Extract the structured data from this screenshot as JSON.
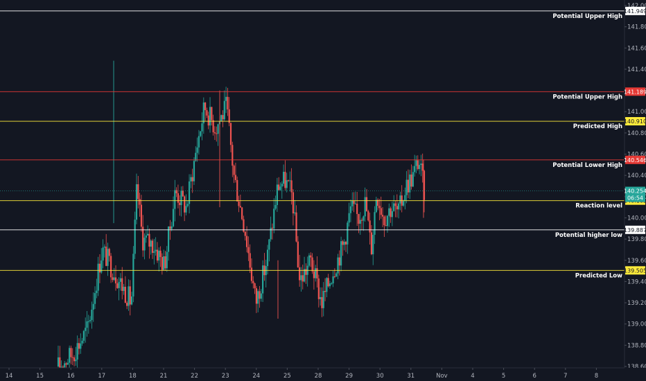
{
  "chart_data": {
    "type": "candlestick",
    "title": "",
    "xlabel": "",
    "ylabel": "",
    "ylim": [
      138.6,
      142.0
    ],
    "y_ticks": [
      "142.000",
      "141.800",
      "141.600",
      "141.400",
      "141.200",
      "141.000",
      "140.800",
      "140.600",
      "140.400",
      "140.200",
      "140.000",
      "139.800",
      "139.600",
      "139.400",
      "139.200",
      "139.000",
      "138.800",
      "138.600"
    ],
    "x_ticks": [
      "14",
      "15",
      "16",
      "17",
      "18",
      "21",
      "22",
      "23",
      "24",
      "25",
      "28",
      "29",
      "30",
      "31",
      "Nov",
      "4",
      "5",
      "6",
      "7",
      "8"
    ],
    "levels": [
      {
        "value": 141.949,
        "price_label": "141.949",
        "label": "Potential Upper High",
        "color": "#ffffff",
        "badge_bg": "#ffffff",
        "badge_fg": "#131722"
      },
      {
        "value": 141.189,
        "price_label": "141.189",
        "label": "Potential Upper High",
        "color": "#e53935",
        "badge_bg": "#e53935",
        "badge_fg": "#ffffff"
      },
      {
        "value": 140.91,
        "price_label": "140.910",
        "label": "Predicted High",
        "color": "#ffeb3b",
        "badge_bg": "#ffeb3b",
        "badge_fg": "#131722"
      },
      {
        "value": 140.546,
        "price_label": "140.546",
        "label": "Potential Lower High",
        "color": "#e53935",
        "badge_bg": "#e53935",
        "badge_fg": "#ffffff"
      },
      {
        "value": 140.162,
        "price_label": "140.162",
        "label": "Reaction level",
        "color": "#ffeb3b",
        "badge_bg": "#ffeb3b",
        "badge_fg": "#131722"
      },
      {
        "value": 139.887,
        "price_label": "139.887",
        "label": "Potential higher low",
        "color": "#ffffff",
        "badge_bg": "#ffffff",
        "badge_fg": "#131722"
      },
      {
        "value": 139.505,
        "price_label": "139.505",
        "label": "Predicted Low",
        "color": "#ffeb3b",
        "badge_bg": "#ffeb3b",
        "badge_fg": "#131722"
      }
    ],
    "last_price": {
      "value": 140.254,
      "label": "140.254",
      "countdown": "06:54",
      "color": "#26a69a"
    },
    "up_color": "#26a69a",
    "down_color": "#ef5350",
    "background": "#131722",
    "grid": false,
    "waypoints": [
      {
        "t": 0.0,
        "p": 138.6
      },
      {
        "t": 0.04,
        "p": 138.72
      },
      {
        "t": 0.08,
        "p": 138.95
      },
      {
        "t": 0.12,
        "p": 139.7
      },
      {
        "t": 0.16,
        "p": 139.45
      },
      {
        "t": 0.2,
        "p": 139.2
      },
      {
        "t": 0.215,
        "p": 140.3
      },
      {
        "t": 0.23,
        "p": 139.8
      },
      {
        "t": 0.26,
        "p": 139.75
      },
      {
        "t": 0.29,
        "p": 139.55
      },
      {
        "t": 0.32,
        "p": 140.25
      },
      {
        "t": 0.35,
        "p": 140.1
      },
      {
        "t": 0.38,
        "p": 140.7
      },
      {
        "t": 0.4,
        "p": 141.05
      },
      {
        "t": 0.43,
        "p": 140.85
      },
      {
        "t": 0.46,
        "p": 141.05
      },
      {
        "t": 0.48,
        "p": 140.4
      },
      {
        "t": 0.51,
        "p": 139.9
      },
      {
        "t": 0.54,
        "p": 139.2
      },
      {
        "t": 0.57,
        "p": 139.6
      },
      {
        "t": 0.6,
        "p": 140.3
      },
      {
        "t": 0.62,
        "p": 140.35
      },
      {
        "t": 0.64,
        "p": 140.2
      },
      {
        "t": 0.66,
        "p": 139.4
      },
      {
        "t": 0.69,
        "p": 139.6
      },
      {
        "t": 0.72,
        "p": 139.2
      },
      {
        "t": 0.75,
        "p": 139.5
      },
      {
        "t": 0.78,
        "p": 139.75
      },
      {
        "t": 0.8,
        "p": 140.1
      },
      {
        "t": 0.82,
        "p": 140.0
      },
      {
        "t": 0.84,
        "p": 140.15
      },
      {
        "t": 0.855,
        "p": 139.7
      },
      {
        "t": 0.87,
        "p": 140.25
      },
      {
        "t": 0.89,
        "p": 140.0
      },
      {
        "t": 0.91,
        "p": 140.1
      },
      {
        "t": 0.93,
        "p": 140.05
      },
      {
        "t": 0.95,
        "p": 140.3
      },
      {
        "t": 0.97,
        "p": 140.4
      },
      {
        "t": 0.985,
        "p": 140.55
      },
      {
        "t": 1.0,
        "p": 140.25
      }
    ],
    "candle_count": 230
  }
}
